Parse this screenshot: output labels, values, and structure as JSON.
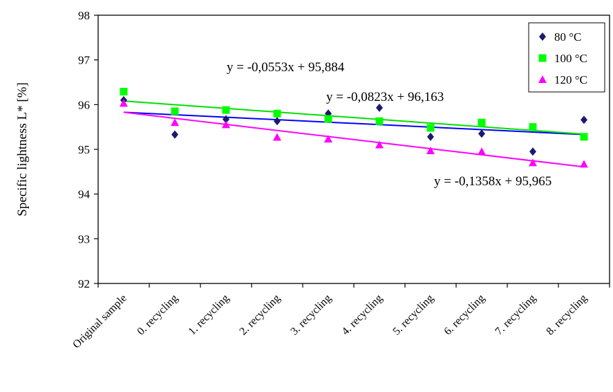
{
  "chart_data": {
    "type": "scatter",
    "title": "",
    "xlabel": "",
    "ylabel": "Specific lightness L*  [%]",
    "ylim": [
      92,
      98
    ],
    "yticks": [
      92,
      93,
      94,
      95,
      96,
      97,
      98
    ],
    "grid": false,
    "legend_position": "top-right",
    "categories": [
      "Original sample",
      "0. recycling",
      "1. recycling",
      "2. recycling",
      "3. recycling",
      "4. recycling",
      "5. recycling",
      "6. recycling",
      "7. recycling",
      "8. recycling"
    ],
    "series": [
      {
        "name": "80 °C",
        "color": "#1a1a6e",
        "marker": "diamond",
        "values": [
          96.1,
          95.33,
          95.67,
          95.63,
          95.8,
          95.93,
          95.28,
          95.35,
          94.95,
          95.66
        ],
        "trendline": {
          "slope": -0.0553,
          "intercept": 95.884,
          "color": "#0000ff",
          "equation": "y = -0,0553x + 95,884"
        }
      },
      {
        "name": "100 °C",
        "color": "#00ff00",
        "marker": "square",
        "values": [
          96.29,
          95.85,
          95.88,
          95.8,
          95.68,
          95.63,
          95.48,
          95.6,
          95.5,
          95.28
        ],
        "trendline": {
          "slope": -0.0823,
          "intercept": 96.163,
          "color": "#00e000",
          "equation": "y = -0,0823x + 96,163"
        }
      },
      {
        "name": "120 °C",
        "color": "#ff00ff",
        "marker": "triangle",
        "values": [
          96.03,
          95.6,
          95.55,
          95.27,
          95.23,
          95.1,
          94.97,
          94.95,
          94.7,
          94.67
        ],
        "trendline": {
          "slope": -0.1358,
          "intercept": 95.965,
          "color": "#ff00ff",
          "equation": "y = -0,1358x + 95,965"
        }
      }
    ]
  }
}
